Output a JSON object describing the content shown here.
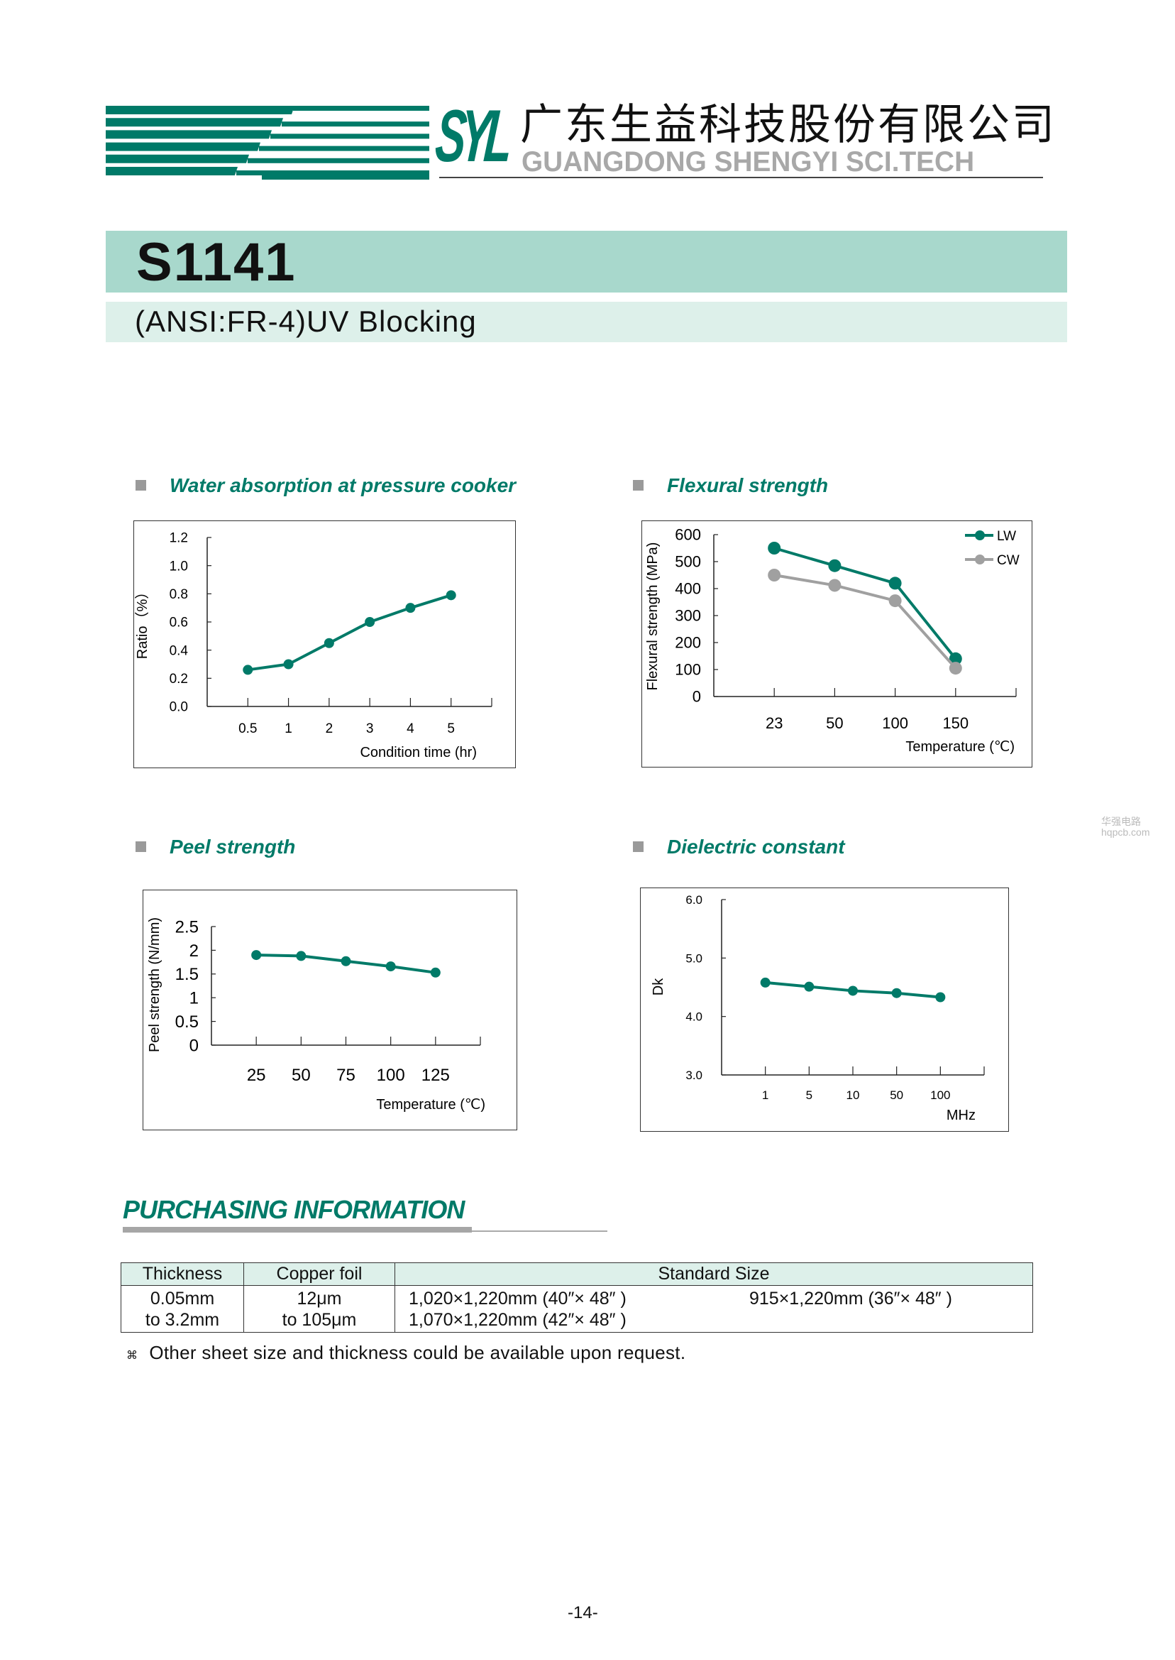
{
  "header": {
    "logo_mark": "SYL",
    "company_cn": "广东生益科技股份有限公司",
    "company_en": "GUANGDONG SHENGYI SCI.TECH",
    "brand_color": "#007a68"
  },
  "product": {
    "code": "S1141",
    "subtitle": "(ANSI:FR-4)UV Blocking"
  },
  "sections": {
    "water": "Water absorption at pressure cooker",
    "flexural": "Flexural strength",
    "peel": "Peel strength",
    "dk": "Dielectric constant"
  },
  "chart_data": [
    {
      "type": "line",
      "title": "Water absorption at pressure cooker",
      "xlabel": "Condition time (hr)",
      "ylabel": "Ratio（%）",
      "categories": [
        "0.5",
        "1",
        "2",
        "3",
        "4",
        "5"
      ],
      "ylim": [
        0,
        1.2
      ],
      "yticks": [
        "0.0",
        "0.2",
        "0.4",
        "0.6",
        "0.8",
        "1.0",
        "1.2"
      ],
      "series": [
        {
          "values": [
            0.26,
            0.3,
            0.45,
            0.6,
            0.7,
            0.79
          ],
          "color": "#007a68"
        }
      ],
      "grid": false
    },
    {
      "type": "line",
      "title": "Flexural strength",
      "xlabel": "Temperature (℃)",
      "ylabel": "Flexural strength (MPa)",
      "categories": [
        "23",
        "50",
        "100",
        "150"
      ],
      "ylim": [
        0,
        600
      ],
      "yticks": [
        "0",
        "100",
        "200",
        "300",
        "400",
        "500",
        "600"
      ],
      "series": [
        {
          "name": "LW",
          "values": [
            550,
            485,
            420,
            140
          ],
          "color": "#007a68"
        },
        {
          "name": "CW",
          "values": [
            450,
            412,
            355,
            105
          ],
          "color": "#a0a0a0"
        }
      ],
      "legend": "top-right",
      "grid": false
    },
    {
      "type": "line",
      "title": "Peel strength",
      "xlabel": "Temperature (℃)",
      "ylabel": "Peel strength (N/mm)",
      "categories": [
        "25",
        "50",
        "75",
        "100",
        "125"
      ],
      "ylim": [
        0,
        2.5
      ],
      "yticks": [
        "0",
        "0.5",
        "1",
        "1.5",
        "2",
        "2.5"
      ],
      "series": [
        {
          "values": [
            1.9,
            1.88,
            1.77,
            1.66,
            1.53
          ],
          "color": "#007a68"
        }
      ],
      "grid": false
    },
    {
      "type": "line",
      "title": "Dielectric constant",
      "xlabel": "MHz",
      "ylabel": "Dk",
      "categories": [
        "1",
        "5",
        "10",
        "50",
        "100"
      ],
      "ylim": [
        3.0,
        6.0
      ],
      "yticks": [
        "3.0",
        "4.0",
        "5.0",
        "6.0"
      ],
      "series": [
        {
          "values": [
            4.58,
            4.51,
            4.44,
            4.4,
            4.33
          ],
          "color": "#007a68"
        }
      ],
      "grid": false
    }
  ],
  "purchasing": {
    "title": "PURCHASING INFORMATION",
    "headers": [
      "Thickness",
      "Copper foil",
      "Standard Size"
    ],
    "thickness": [
      "0.05mm",
      "to 3.2mm"
    ],
    "copper": [
      "12μm",
      "to 105μm"
    ],
    "sizes": [
      "1,020×1,220mm (40″×  48″ )",
      "915×1,220mm (36″×  48″ )",
      "1,070×1,220mm (42″×  48″ )"
    ],
    "note_mark": "⌘",
    "note": "Other sheet size and thickness could be available upon request."
  },
  "page_number": "-14-",
  "watermark": [
    "华强电路",
    "hqpcb.com"
  ]
}
